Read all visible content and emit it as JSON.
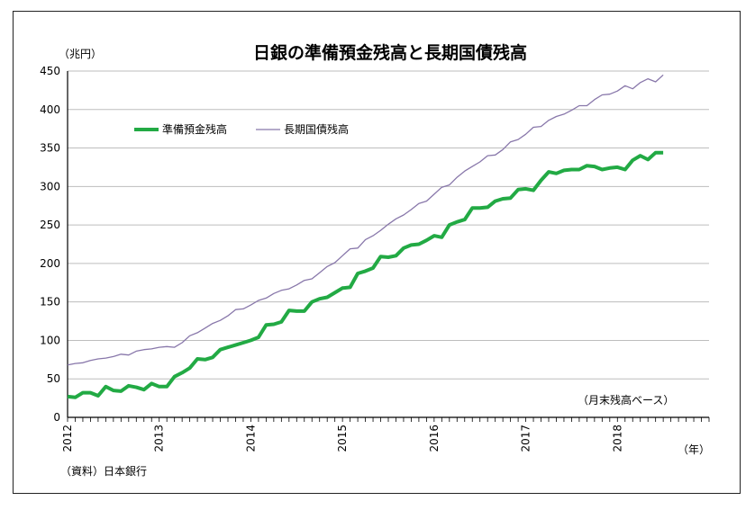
{
  "chart_data": {
    "type": "line",
    "title": "日銀の準備預金残高と長期国債残高",
    "y_unit": "（兆円）",
    "x_unit": "（年）",
    "note": "（月末残高ベース）",
    "source": "（資料）日本銀行",
    "ylim": [
      0,
      450
    ],
    "y_ticks": [
      0,
      50,
      100,
      150,
      200,
      250,
      300,
      350,
      400,
      450
    ],
    "x_range": [
      "2012-01",
      "2018-12"
    ],
    "x_tick_labels": [
      "2012",
      "2013",
      "2014",
      "2015",
      "2016",
      "2017",
      "2018"
    ],
    "grid": "horizontal",
    "legend_position": "upper-left",
    "series": [
      {
        "name": "準備預金残高",
        "color": "#22aa44",
        "x_start": "2012-01",
        "values": [
          27,
          26,
          32,
          32,
          28,
          40,
          35,
          34,
          41,
          39,
          36,
          44,
          40,
          40,
          53,
          58,
          64,
          76,
          75,
          78,
          88,
          91,
          94,
          97,
          100,
          104,
          120,
          121,
          124,
          139,
          138,
          138,
          150,
          154,
          156,
          162,
          168,
          169,
          187,
          190,
          194,
          209,
          208,
          210,
          220,
          224,
          225,
          230,
          236,
          234,
          250,
          254,
          257,
          272,
          272,
          273,
          281,
          284,
          285,
          296,
          297,
          295,
          308,
          319,
          317,
          321,
          322,
          322,
          327,
          326,
          322,
          324,
          325,
          322,
          334,
          340,
          335,
          344,
          344
        ]
      },
      {
        "name": "長期国債残高",
        "color": "#8877aa",
        "x_start": "2012-01",
        "values": [
          68,
          70,
          71,
          74,
          76,
          77,
          79,
          82,
          81,
          86,
          88,
          89,
          91,
          92,
          91,
          97,
          106,
          110,
          116,
          122,
          126,
          132,
          140,
          141,
          146,
          152,
          155,
          161,
          165,
          167,
          172,
          178,
          180,
          188,
          196,
          201,
          210,
          219,
          220,
          231,
          236,
          243,
          251,
          258,
          263,
          270,
          278,
          281,
          290,
          299,
          302,
          312,
          320,
          326,
          332,
          340,
          341,
          348,
          358,
          361,
          368,
          377,
          378,
          386,
          391,
          394,
          399,
          405,
          405,
          413,
          419,
          420,
          424,
          431,
          427,
          435,
          440,
          436,
          445
        ]
      }
    ]
  }
}
